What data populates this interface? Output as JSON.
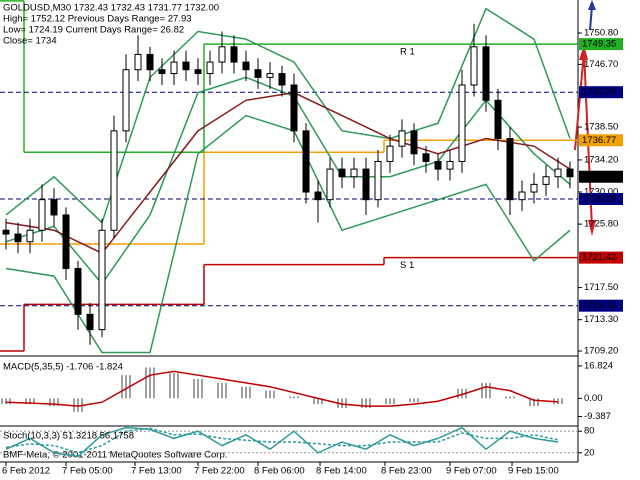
{
  "chart_data": [
    {
      "type": "candlestick",
      "header": [
        "GOLDUSD,M30  1732.43 1732.43 1731.77 1732.00",
        "High= 1752.12    Previous Days Range= 27.93",
        "Low= 1724.19    Current Days Range= 26.82",
        "Close= 1734"
      ],
      "copyright": "BMF-Meta, © 2001-2011 MetaQuotes Software Corp.",
      "open": [
        1725,
        1724.5,
        1723.5,
        1725,
        1729,
        1727,
        1720,
        1714,
        1712,
        1725,
        1738,
        1746,
        1748,
        1746,
        1745.5,
        1747,
        1746,
        1745.5,
        1747,
        1749,
        1747,
        1746,
        1745,
        1745.5,
        1744,
        1738,
        1730,
        1729,
        1733,
        1732,
        1733,
        1729,
        1734,
        1736,
        1738,
        1735,
        1734,
        1733,
        1734,
        1744,
        1749,
        1742,
        1737,
        1729,
        1730,
        1731,
        1732,
        1733
      ],
      "high": [
        1726.5,
        1726,
        1726.5,
        1731,
        1730.5,
        1728,
        1721,
        1715.5,
        1726.5,
        1740,
        1748,
        1750.5,
        1749,
        1747.5,
        1748.5,
        1748.5,
        1747.5,
        1748.5,
        1751,
        1750.5,
        1748.5,
        1747.5,
        1747,
        1746.5,
        1745.5,
        1739,
        1731.5,
        1734.5,
        1734.5,
        1734.5,
        1734.5,
        1735.5,
        1737.5,
        1739.5,
        1739,
        1736,
        1735,
        1735.5,
        1746,
        1752,
        1750.5,
        1743.5,
        1738.5,
        1731.5,
        1732.5,
        1733.5,
        1734.5,
        1734
      ],
      "low": [
        1722.5,
        1722,
        1722,
        1723.5,
        1725.5,
        1718.5,
        1712,
        1710,
        1711,
        1724,
        1736.5,
        1744.5,
        1744.5,
        1744,
        1744,
        1744.5,
        1744,
        1744,
        1745.5,
        1745.5,
        1744.5,
        1743.5,
        1743.5,
        1742.5,
        1736.5,
        1728.5,
        1726,
        1728,
        1730.5,
        1730.5,
        1727,
        1728,
        1732.5,
        1734.5,
        1733.5,
        1732.5,
        1731.5,
        1731.5,
        1732.5,
        1742.5,
        1740.5,
        1735.5,
        1727,
        1727.5,
        1728.5,
        1729.5,
        1730.5,
        1730.5
      ],
      "close": [
        1724.5,
        1723.5,
        1725,
        1729,
        1727,
        1720,
        1714,
        1712,
        1725,
        1738,
        1746,
        1748,
        1746,
        1745.5,
        1747,
        1746,
        1745.5,
        1747,
        1749,
        1747,
        1746,
        1745,
        1745.5,
        1744,
        1738,
        1730,
        1729,
        1733,
        1732,
        1733,
        1729,
        1734,
        1736,
        1738,
        1735,
        1734,
        1733,
        1734,
        1744,
        1749,
        1742,
        1737,
        1729,
        1730,
        1731,
        1732,
        1733,
        1732
      ],
      "overlays": [
        {
          "color": "#2e9a5a",
          "x": [
            0,
            4,
            8,
            12,
            16,
            20,
            24,
            28,
            32,
            36,
            40,
            44,
            47
          ],
          "values": [
            1727,
            1732,
            1726,
            1745,
            1751,
            1750,
            1747,
            1738,
            1737,
            1739,
            1754,
            1750,
            1737
          ]
        },
        {
          "color": "#2e9a5a",
          "x": [
            0,
            4,
            8,
            12,
            16,
            20,
            24,
            28,
            32,
            36,
            40,
            44,
            47
          ],
          "values": [
            1723.5,
            1725.5,
            1718,
            1727,
            1743,
            1745,
            1742.5,
            1732,
            1732,
            1734,
            1742,
            1735,
            1731
          ]
        },
        {
          "color": "#2e9a5a",
          "x": [
            0,
            4,
            8,
            12,
            16,
            20,
            24,
            28,
            32,
            36,
            40,
            44,
            47
          ],
          "values": [
            1720,
            1719,
            1709,
            1709,
            1735,
            1740,
            1738,
            1725,
            1727,
            1729,
            1731,
            1721,
            1725
          ]
        },
        {
          "color": "#8b1a1a",
          "x": [
            0,
            4,
            8,
            12,
            16,
            20,
            24,
            28,
            32,
            36,
            40,
            44,
            47
          ],
          "values": [
            1726,
            1725,
            1722,
            1730,
            1738,
            1742,
            1743,
            1740,
            1737,
            1735,
            1737,
            1736,
            1733
          ]
        }
      ],
      "levels": [
        {
          "color": "#22b022",
          "dash": false,
          "steps": [
            [
              0,
              1755
            ],
            [
              2,
              1735.2
            ],
            [
              17,
              1749.35
            ]
          ]
        },
        {
          "color": "#f0a000",
          "dash": false,
          "steps": [
            [
              0,
              1723.2
            ],
            [
              17,
              1735.2
            ],
            [
              32,
              1736.77
            ]
          ]
        },
        {
          "color": "#c00000",
          "dash": false,
          "steps": [
            [
              0,
              1709.2
            ],
            [
              2,
              1715.3
            ],
            [
              17,
              1720.5
            ],
            [
              32,
              1721.42
            ]
          ]
        },
        {
          "color": "#000080",
          "dash": true,
          "steps": [
            [
              0,
              1743.06
            ]
          ]
        },
        {
          "color": "#000080",
          "dash": true,
          "steps": [
            [
              0,
              1729.09
            ]
          ]
        },
        {
          "color": "#000080",
          "dash": true,
          "steps": [
            [
              0,
              1715.13
            ]
          ]
        }
      ],
      "pivot_labels": [
        {
          "label": "R 1",
          "value": 1749.35,
          "color": "#c8a000"
        },
        {
          "label": "S 1",
          "value": 1721.42,
          "color": "#c8a000"
        }
      ],
      "highlights": [
        {
          "value": 1749.35,
          "label": "1749.35",
          "color": "#22b022"
        },
        {
          "value": 1743.06,
          "label": "1743.06",
          "color": "#000080"
        },
        {
          "value": 1736.77,
          "label": "1736.77",
          "color": "#f0a000"
        },
        {
          "value": 1732,
          "label": "1732.00",
          "color": "#000000"
        },
        {
          "value": 1729.09,
          "label": "1729.09",
          "color": "#000080"
        },
        {
          "value": 1721.42,
          "label": "1721.42",
          "color": "#c00000"
        },
        {
          "value": 1715.13,
          "label": "1715.13",
          "color": "#000080"
        }
      ],
      "ylim": [
        1708.68,
        1755.12
      ],
      "yticks": [
        {
          "value": 1750.8,
          "label": "1750.80"
        },
        {
          "value": 1746.7,
          "label": "1746.70"
        },
        {
          "value": 1738.5,
          "label": "1738.50"
        },
        {
          "value": 1734.2,
          "label": "1734.20"
        },
        {
          "value": 1730,
          "label": "1730.00"
        },
        {
          "value": 1725.8,
          "label": "1725.80"
        },
        {
          "value": 1717.5,
          "label": "1717.50"
        },
        {
          "value": 1713.3,
          "label": "1713.30"
        },
        {
          "value": 1709.2,
          "label": "1709.20"
        }
      ],
      "xticks": [
        {
          "value": 0,
          "label": "6 Feb 2012"
        },
        {
          "value": 5,
          "label": "7 Feb 05:00"
        },
        {
          "value": 10.75,
          "label": "7 Feb 13:00"
        },
        {
          "value": 16,
          "label": "7 Feb 22:00"
        },
        {
          "value": 21,
          "label": "8 Feb 06:00"
        },
        {
          "value": 26.17,
          "label": "8 Feb 14:00"
        },
        {
          "value": 31.58,
          "label": "8 Feb 23:00"
        },
        {
          "value": 37,
          "label": "9 Feb 07:00"
        },
        {
          "value": 42.17,
          "label": "9 Feb 15:00"
        }
      ]
    },
    {
      "type": "macd",
      "title": "MACD(5,35,5) -1.706 -1.824",
      "x": [
        0,
        2,
        4,
        6,
        8,
        10,
        12,
        14,
        16,
        18,
        20,
        22,
        24,
        26,
        28,
        30,
        32,
        34,
        36,
        38,
        40,
        42,
        44,
        46
      ],
      "histogram": [
        -3,
        -3,
        -4,
        -7,
        0,
        12,
        16,
        13,
        10,
        8,
        6,
        4,
        1,
        -3,
        -5,
        -5,
        -3,
        -2,
        0,
        5,
        8,
        1,
        -4,
        -3
      ],
      "signal": [
        -2,
        -2.5,
        -3,
        -4,
        -2,
        5,
        12,
        14,
        12,
        10,
        8,
        6,
        3,
        0,
        -3,
        -4,
        -4,
        -3,
        -1.5,
        2,
        6,
        4,
        -1,
        -1.8
      ],
      "hist_color": "#a0a0a0",
      "signal_color": "#c00000",
      "ylim": [
        -13.8,
        20.9
      ],
      "yticks": [
        16.824,
        {
          "value": 0,
          "label": "0.00"
        },
        -9.387
      ]
    },
    {
      "type": "stoch",
      "title": "Stoch(10,3,3) 51.3218 56.1758",
      "x": [
        0,
        2,
        4,
        6,
        8,
        10,
        12,
        14,
        16,
        18,
        20,
        22,
        24,
        26,
        28,
        30,
        32,
        34,
        36,
        38,
        40,
        42,
        44,
        46
      ],
      "main": [
        30,
        60,
        20,
        10,
        70,
        90,
        85,
        60,
        80,
        40,
        70,
        30,
        80,
        20,
        50,
        30,
        70,
        40,
        60,
        90,
        30,
        80,
        60,
        50
      ],
      "signal": [
        35,
        45,
        40,
        20,
        40,
        80,
        88,
        70,
        72,
        60,
        55,
        50,
        50,
        45,
        40,
        40,
        50,
        50,
        50,
        75,
        60,
        60,
        70,
        56
      ],
      "main_color": "#2e9a9a",
      "signal_color": "#2e9a9a",
      "ylim": [
        0,
        100
      ],
      "yticks": [
        80,
        20
      ]
    }
  ]
}
